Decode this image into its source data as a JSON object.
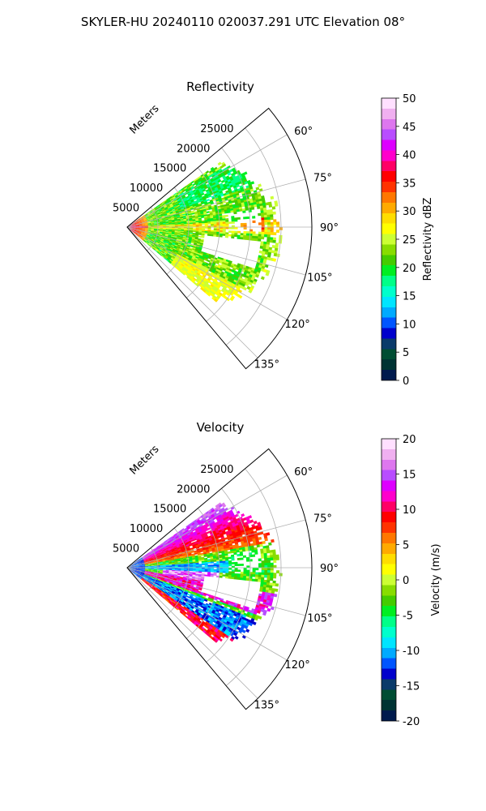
{
  "figure_title": "SKYLER-HU  20240110  020037.291 UTC Elevation 08°",
  "chart_data": [
    {
      "type": "heatmap",
      "projection": "polar-sector",
      "title": "Reflectivity",
      "radial_label": "Meters",
      "radial_ticks": [
        5000,
        10000,
        15000,
        20000,
        25000
      ],
      "radial_range": [
        0,
        30000
      ],
      "azimuth_range": [
        50,
        140
      ],
      "azimuth_ticks": [
        "60°",
        "75°",
        "90°",
        "105°",
        "120°",
        "135°"
      ],
      "azimuth_tick_values": [
        60,
        75,
        90,
        105,
        120,
        135
      ],
      "grid": true,
      "colorbar": {
        "label": "Reflectivity dBZ",
        "range": [
          0,
          50
        ],
        "ticks": [
          "0",
          "5",
          "10",
          "15",
          "20",
          "25",
          "30",
          "35",
          "40",
          "45",
          "50"
        ],
        "tick_values": [
          0,
          5,
          10,
          15,
          20,
          25,
          30,
          35,
          40,
          45,
          50
        ]
      }
    },
    {
      "type": "heatmap",
      "projection": "polar-sector",
      "title": "Velocity",
      "radial_label": "Meters",
      "radial_ticks": [
        5000,
        10000,
        15000,
        20000,
        25000
      ],
      "radial_range": [
        0,
        30000
      ],
      "azimuth_range": [
        50,
        140
      ],
      "azimuth_ticks": [
        "60°",
        "75°",
        "90°",
        "105°",
        "120°",
        "135°"
      ],
      "azimuth_tick_values": [
        60,
        75,
        90,
        105,
        120,
        135
      ],
      "grid": true,
      "colorbar": {
        "label": "Velocity (m/s)",
        "range": [
          -20,
          20
        ],
        "ticks": [
          "-20",
          "-15",
          "-10",
          "-5",
          "0",
          "5",
          "10",
          "15",
          "20"
        ],
        "tick_values": [
          -20,
          -15,
          -10,
          -5,
          0,
          5,
          10,
          15,
          20
        ]
      }
    }
  ],
  "colors": {
    "reflectivity_scale": [
      "#001a4d",
      "#003333",
      "#004d33",
      "#0a3a6a",
      "#0000cc",
      "#0055ff",
      "#00aaff",
      "#00e5ff",
      "#00ffcc",
      "#00ff88",
      "#00ee22",
      "#44cc00",
      "#88dd00",
      "#ccff33",
      "#ffff00",
      "#ffdd00",
      "#ffaa00",
      "#ff7700",
      "#ff3300",
      "#ff0000",
      "#ff0066",
      "#ff00cc",
      "#dd00ff",
      "#b84dff",
      "#dd77ee",
      "#f0b0f0",
      "#ffe0ff"
    ],
    "velocity_scale": [
      "#001a4d",
      "#003333",
      "#004d33",
      "#0a3a6a",
      "#0000cc",
      "#0055ff",
      "#00aaff",
      "#00e5ff",
      "#00ffcc",
      "#00ff88",
      "#00ee22",
      "#44cc00",
      "#88dd00",
      "#ccff33",
      "#ffff00",
      "#ffdd00",
      "#ffaa00",
      "#ff7700",
      "#ff3300",
      "#ff0000",
      "#ff0066",
      "#ff00cc",
      "#dd00ff",
      "#b84dff",
      "#dd77ee",
      "#f0b0f0",
      "#ffe0ff"
    ]
  }
}
